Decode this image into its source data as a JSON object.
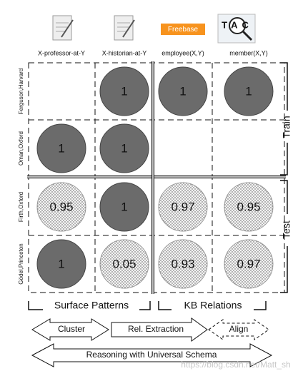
{
  "columns": [
    {
      "label": "X-professor-at-Y"
    },
    {
      "label": "X-historian-at-Y"
    },
    {
      "label": "employee(X,Y)",
      "icon_text": "Freebase"
    },
    {
      "label": "member(X,Y)",
      "icon_text": "TAC"
    }
  ],
  "rows": [
    {
      "label": "Ferguson,Harvard",
      "cells": [
        null,
        "1",
        "1",
        "1"
      ]
    },
    {
      "label": "Oman,Oxford",
      "cells": [
        "1",
        "1",
        null,
        null
      ]
    },
    {
      "label": "Firth,Oxford",
      "cells": [
        "0.95",
        "1",
        "0.97",
        "0.95"
      ]
    },
    {
      "label": "Gödel,Princeton",
      "cells": [
        "1",
        "0.05",
        "0.93",
        "0.97"
      ]
    }
  ],
  "sections": {
    "train": "Train",
    "test": "Test",
    "surface": "Surface Patterns",
    "kb": "KB Relations"
  },
  "arrows": {
    "cluster": "Cluster",
    "extraction": "Rel. Extraction",
    "align": "Align",
    "reasoning": "Reasoning with Universal Schema"
  },
  "watermark": "https://blog.csdn.net/Matt_sh"
}
